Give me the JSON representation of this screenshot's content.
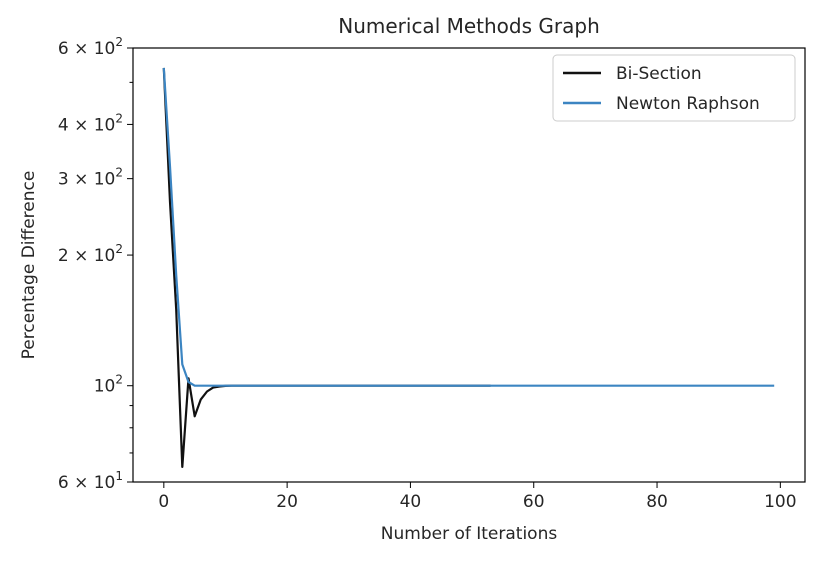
{
  "chart_data": {
    "type": "line",
    "title": "Numerical Methods Graph",
    "xlabel": "Number of Iterations",
    "ylabel": "Percentage Difference",
    "xlim": [
      -5,
      104
    ],
    "ylim": [
      60,
      600
    ],
    "yscale": "log",
    "grid": false,
    "legend_position": "top-right",
    "x_ticks": [
      0,
      20,
      40,
      60,
      80,
      100
    ],
    "x_tick_labels": [
      "0",
      "20",
      "40",
      "60",
      "80",
      "100"
    ],
    "y_major_ticks": [
      60,
      100,
      200,
      300,
      400,
      600
    ],
    "y_major_tick_labels": [
      {
        "base": "6 × 10",
        "exp": "1"
      },
      {
        "base": "10",
        "exp": "2"
      },
      {
        "base": "2 × 10",
        "exp": "2"
      },
      {
        "base": "3 × 10",
        "exp": "2"
      },
      {
        "base": "4 × 10",
        "exp": "2"
      },
      {
        "base": "6 × 10",
        "exp": "2"
      }
    ],
    "y_minor_ticks": [
      70,
      80,
      90,
      500
    ],
    "series": [
      {
        "name": "Bi-Section",
        "color": "#111111",
        "x": [
          0,
          1,
          2,
          3,
          4,
          5,
          6,
          7,
          8,
          9,
          10,
          11,
          12,
          15,
          20,
          30,
          40,
          53
        ],
        "y": [
          540,
          265,
          150,
          65,
          104,
          85,
          93,
          97,
          99,
          99.6,
          99.9,
          100,
          100,
          100,
          100,
          100,
          100,
          100
        ]
      },
      {
        "name": "Newton Raphson",
        "color": "#3c85c2",
        "x": [
          0,
          1,
          2,
          3,
          4,
          5,
          6,
          10,
          20,
          40,
          60,
          80,
          99
        ],
        "y": [
          540,
          320,
          180,
          112,
          102,
          100,
          100,
          100,
          100,
          100,
          100,
          100,
          100
        ]
      }
    ]
  }
}
